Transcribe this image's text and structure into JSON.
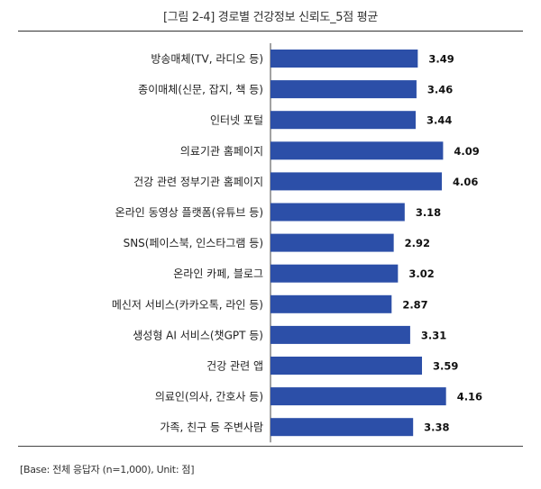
{
  "chart_data": {
    "type": "bar",
    "orientation": "horizontal",
    "title": "[그림 2-4]  경로별  건강정보  신뢰도_5점  평균",
    "categories": [
      "방송매체(TV, 라디오 등)",
      "종이매체(신문, 잡지, 책 등)",
      "인터넷 포털",
      "의료기관 홈페이지",
      "건강 관련 정부기관 홈페이지",
      "온라인 동영상 플랫폼(유튜브 등)",
      "SNS(페이스북, 인스타그램 등)",
      "온라인 카페, 블로그",
      "메신저 서비스(카카오톡, 라인 등)",
      "생성형 AI 서비스(챗GPT 등)",
      "건강 관련 앱",
      "의료인(의사, 간호사 등)",
      "가족, 친구 등 주변사람"
    ],
    "values": [
      3.49,
      3.46,
      3.44,
      4.09,
      4.06,
      3.18,
      2.92,
      3.02,
      2.87,
      3.31,
      3.59,
      4.16,
      3.38
    ],
    "value_labels": [
      "3.49",
      "3.46",
      "3.44",
      "4.09",
      "4.06",
      "3.18",
      "2.92",
      "3.02",
      "2.87",
      "3.31",
      "3.59",
      "4.16",
      "3.38"
    ],
    "xlim": [
      0,
      5
    ],
    "xlabel": "",
    "ylabel": "",
    "grid": false,
    "bar_color": "#2c4fa8",
    "source": "[Base: 전체 응답자 (n=1,000), Unit: 점]"
  }
}
